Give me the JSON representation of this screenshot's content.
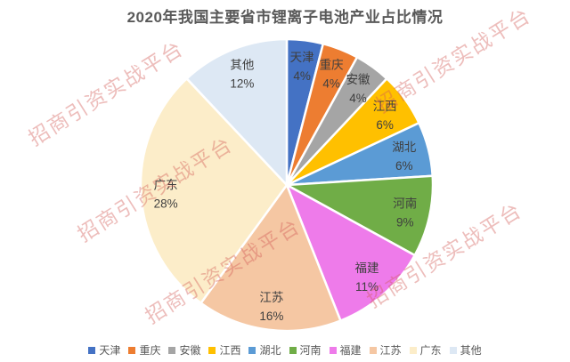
{
  "title": "2020年我国主要省市锂离子电池产业占比情况",
  "watermark": {
    "text": "招商引资实战平台"
  },
  "chart_data": {
    "type": "pie",
    "title": "2020年我国主要省市锂离子电池产业占比情况",
    "unit": "%",
    "start_angle_deg": 0,
    "direction": "clockwise",
    "legend_position": "bottom",
    "label_style": "category name and percent inside slice",
    "slices": [
      {
        "label": "天津",
        "value": 4,
        "color": "#4472C4"
      },
      {
        "label": "重庆",
        "value": 4,
        "color": "#ED7D31"
      },
      {
        "label": "安徽",
        "value": 4,
        "color": "#A5A5A5"
      },
      {
        "label": "江西",
        "value": 6,
        "color": "#FFC000"
      },
      {
        "label": "湖北",
        "value": 6,
        "color": "#5B9BD5"
      },
      {
        "label": "河南",
        "value": 9,
        "color": "#70AD47"
      },
      {
        "label": "福建",
        "value": 11,
        "color": "#EE7BEA"
      },
      {
        "label": "江苏",
        "value": 16,
        "color": "#F5C7A3"
      },
      {
        "label": "广东",
        "value": 28,
        "color": "#FCEDC9"
      },
      {
        "label": "其他",
        "value": 12,
        "color": "#DDE8F4"
      }
    ]
  }
}
